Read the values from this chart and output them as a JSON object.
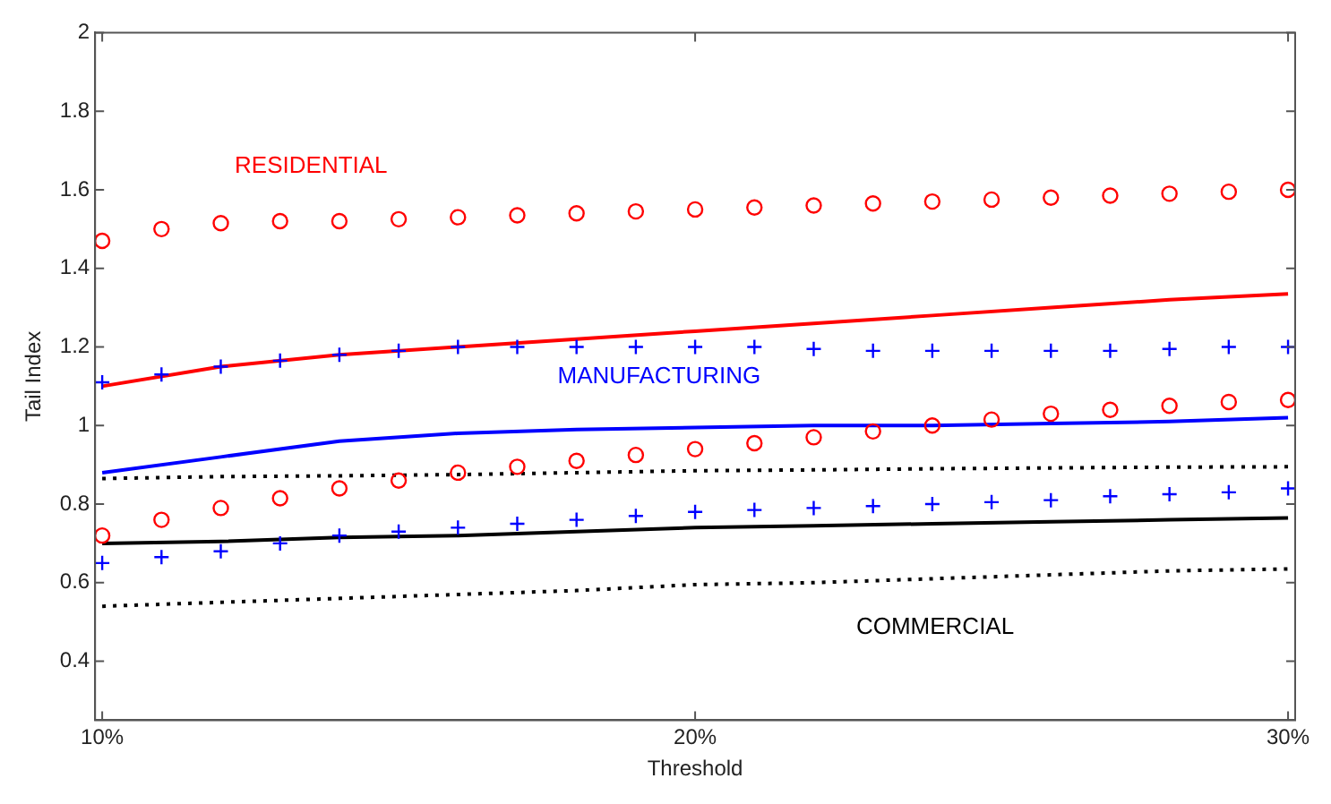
{
  "chart_data": {
    "type": "line",
    "xlabel": "Threshold",
    "ylabel": "Tail Index",
    "xlim": [
      9.88,
      30.12
    ],
    "xticks": [
      {
        "value": 10,
        "label": "10%"
      },
      {
        "value": 20,
        "label": "20%"
      },
      {
        "value": 30,
        "label": "30%"
      }
    ],
    "ylim": [
      0.25,
      2
    ],
    "yticks": [
      {
        "value": 0.4,
        "label": "0.4"
      },
      {
        "value": 0.6,
        "label": "0.6"
      },
      {
        "value": 0.8,
        "label": "0.8"
      },
      {
        "value": 1,
        "label": "1"
      },
      {
        "value": 1.2,
        "label": "1.2"
      },
      {
        "value": 1.4,
        "label": "1.4"
      },
      {
        "value": 1.6,
        "label": "1.6"
      },
      {
        "value": 1.8,
        "label": "1.8"
      },
      {
        "value": 2,
        "label": "2"
      }
    ],
    "grid": false,
    "legend": false,
    "x": [
      10,
      12,
      14,
      16,
      18,
      20,
      22,
      24,
      26,
      28,
      30
    ],
    "series": [
      {
        "type": "scatter",
        "marker": "circle",
        "color": "#ff0000",
        "x": [
          10,
          11,
          12,
          13,
          14,
          15,
          16,
          17,
          18,
          19,
          20,
          21,
          22,
          23,
          24,
          25,
          26,
          27,
          28,
          29,
          30
        ],
        "values": [
          1.47,
          1.5,
          1.515,
          1.52,
          1.52,
          1.525,
          1.53,
          1.535,
          1.54,
          1.545,
          1.55,
          1.555,
          1.56,
          1.565,
          1.57,
          1.575,
          1.58,
          1.585,
          1.59,
          1.595,
          1.6
        ]
      },
      {
        "line_style": "solid",
        "color": "#ff0000",
        "values": [
          1.1,
          1.15,
          1.18,
          1.2,
          1.22,
          1.24,
          1.26,
          1.28,
          1.3,
          1.32,
          1.335
        ]
      },
      {
        "type": "scatter",
        "marker": "circle",
        "color": "#ff0000",
        "x": [
          10,
          11,
          12,
          13,
          14,
          15,
          16,
          17,
          18,
          19,
          20,
          21,
          22,
          23,
          24,
          25,
          26,
          27,
          28,
          29,
          30
        ],
        "values": [
          0.72,
          0.76,
          0.79,
          0.815,
          0.84,
          0.86,
          0.88,
          0.895,
          0.91,
          0.925,
          0.94,
          0.955,
          0.97,
          0.985,
          1.0,
          1.015,
          1.03,
          1.04,
          1.05,
          1.06,
          1.065
        ]
      },
      {
        "type": "scatter",
        "marker": "cross",
        "color": "#0000ff",
        "x": [
          10,
          11,
          12,
          13,
          14,
          15,
          16,
          17,
          18,
          19,
          20,
          21,
          22,
          23,
          24,
          25,
          26,
          27,
          28,
          29,
          30
        ],
        "values": [
          1.11,
          1.13,
          1.15,
          1.165,
          1.18,
          1.19,
          1.2,
          1.2,
          1.2,
          1.2,
          1.2,
          1.2,
          1.195,
          1.19,
          1.19,
          1.19,
          1.19,
          1.19,
          1.195,
          1.2,
          1.2
        ]
      },
      {
        "line_style": "solid",
        "color": "#0000ff",
        "values": [
          0.88,
          0.92,
          0.96,
          0.98,
          0.99,
          0.995,
          1.0,
          1.0,
          1.005,
          1.01,
          1.02
        ]
      },
      {
        "type": "scatter",
        "marker": "cross",
        "color": "#0000ff",
        "x": [
          10,
          11,
          12,
          13,
          14,
          15,
          16,
          17,
          18,
          19,
          20,
          21,
          22,
          23,
          24,
          25,
          26,
          27,
          28,
          29,
          30
        ],
        "values": [
          0.65,
          0.665,
          0.68,
          0.7,
          0.72,
          0.73,
          0.74,
          0.75,
          0.76,
          0.77,
          0.78,
          0.785,
          0.79,
          0.795,
          0.8,
          0.805,
          0.81,
          0.82,
          0.825,
          0.83,
          0.84
        ]
      },
      {
        "line_style": "solid",
        "color": "#000000",
        "values": [
          0.7,
          0.705,
          0.715,
          0.72,
          0.73,
          0.74,
          0.745,
          0.75,
          0.755,
          0.76,
          0.765
        ]
      },
      {
        "line_style": "dotted",
        "color": "#000000",
        "values": [
          0.865,
          0.87,
          0.872,
          0.875,
          0.88,
          0.885,
          0.887,
          0.89,
          0.892,
          0.894,
          0.895
        ]
      },
      {
        "line_style": "dotted",
        "color": "#000000",
        "values": [
          0.54,
          0.55,
          0.56,
          0.57,
          0.58,
          0.595,
          0.6,
          0.61,
          0.62,
          0.63,
          0.635
        ]
      }
    ],
    "annotations": [
      "RESIDENTIAL",
      "MANUFACTURING",
      "COMMERCIAL"
    ]
  }
}
